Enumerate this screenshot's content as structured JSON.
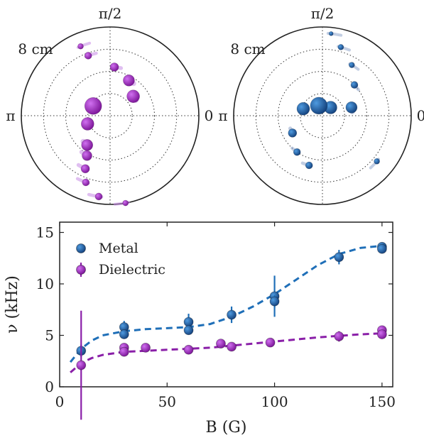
{
  "polar_plots": [
    {
      "top_label": "π/2",
      "left_label": "π",
      "right_label": "0",
      "radius_label": "8 cm",
      "series_color": "#8a1fa8",
      "points": [
        {
          "r": 0.85,
          "deg": 113,
          "size": 4
        },
        {
          "r": 0.72,
          "deg": 110,
          "size": 5
        },
        {
          "r": 0.55,
          "deg": 85,
          "size": 6
        },
        {
          "r": 0.45,
          "deg": 62,
          "size": 8
        },
        {
          "r": 0.34,
          "deg": 40,
          "size": 9
        },
        {
          "r": 0.22,
          "deg": 150,
          "size": 12
        },
        {
          "r": 0.27,
          "deg": 200,
          "size": 9
        },
        {
          "r": 0.42,
          "deg": 232,
          "size": 8
        },
        {
          "r": 0.52,
          "deg": 240,
          "size": 7
        },
        {
          "r": 0.66,
          "deg": 245,
          "size": 6
        },
        {
          "r": 0.8,
          "deg": 250,
          "size": 5
        },
        {
          "r": 0.92,
          "deg": 262,
          "size": 5
        },
        {
          "r": 1.0,
          "deg": 280,
          "size": 4
        }
      ]
    },
    {
      "top_label": "π/2",
      "left_label": "π",
      "right_label": "0",
      "radius_label": "8 cm",
      "series_color": "#2b5fa5",
      "points": [
        {
          "r": 0.93,
          "deg": 84,
          "size": 3
        },
        {
          "r": 0.8,
          "deg": 75,
          "size": 4
        },
        {
          "r": 0.66,
          "deg": 60,
          "size": 4
        },
        {
          "r": 0.5,
          "deg": 44,
          "size": 5
        },
        {
          "r": 0.34,
          "deg": 16,
          "size": 8
        },
        {
          "r": 0.13,
          "deg": 45,
          "size": 9
        },
        {
          "r": 0.12,
          "deg": 110,
          "size": 12
        },
        {
          "r": 0.23,
          "deg": 160,
          "size": 9
        },
        {
          "r": 0.39,
          "deg": 210,
          "size": 6
        },
        {
          "r": 0.5,
          "deg": 235,
          "size": 5
        },
        {
          "r": 0.58,
          "deg": 255,
          "size": 5
        },
        {
          "r": 0.8,
          "deg": 320,
          "size": 4
        }
      ]
    }
  ],
  "chart_data": {
    "type": "scatter",
    "xlabel": "B (G)",
    "ylabel": "ν (kHz)",
    "xlim": [
      0,
      155
    ],
    "ylim": [
      0,
      16
    ],
    "x_ticks": [
      0,
      50,
      100,
      150
    ],
    "y_ticks": [
      0,
      5,
      10,
      15
    ],
    "legend_position": "top-left",
    "series": [
      {
        "name": "Metal",
        "color": "#1f6fb8",
        "points": [
          {
            "x": 10,
            "y": 3.5,
            "err": 0.6
          },
          {
            "x": 30,
            "y": 5.8,
            "err": 0.6
          },
          {
            "x": 30,
            "y": 5.1,
            "err": 0.4
          },
          {
            "x": 60,
            "y": 6.3,
            "err": 0.8
          },
          {
            "x": 60,
            "y": 5.5,
            "err": 0.4
          },
          {
            "x": 80,
            "y": 7.0,
            "err": 0.8
          },
          {
            "x": 100,
            "y": 8.8,
            "err": 2.0
          },
          {
            "x": 100,
            "y": 8.3,
            "err": 0.6
          },
          {
            "x": 130,
            "y": 12.6,
            "err": 0.7
          },
          {
            "x": 150,
            "y": 13.6,
            "err": 0.4
          },
          {
            "x": 150,
            "y": 13.4,
            "err": 0.3
          }
        ],
        "fit": [
          [
            5,
            2.4
          ],
          [
            10,
            3.7
          ],
          [
            15,
            4.5
          ],
          [
            20,
            5.0
          ],
          [
            30,
            5.4
          ],
          [
            40,
            5.6
          ],
          [
            50,
            5.7
          ],
          [
            60,
            5.8
          ],
          [
            70,
            6.1
          ],
          [
            80,
            6.8
          ],
          [
            90,
            7.8
          ],
          [
            100,
            9.0
          ],
          [
            110,
            10.4
          ],
          [
            120,
            11.8
          ],
          [
            130,
            12.9
          ],
          [
            140,
            13.5
          ],
          [
            150,
            13.7
          ]
        ]
      },
      {
        "name": "Dielectric",
        "color": "#8a1fa8",
        "points": [
          {
            "x": 10,
            "y": 2.1,
            "err": 5.3
          },
          {
            "x": 30,
            "y": 3.8,
            "err": 0.4
          },
          {
            "x": 30,
            "y": 3.4,
            "err": 0.3
          },
          {
            "x": 40,
            "y": 3.8,
            "err": 0.3
          },
          {
            "x": 60,
            "y": 3.6,
            "err": 0.3
          },
          {
            "x": 75,
            "y": 4.2,
            "err": 0.3
          },
          {
            "x": 80,
            "y": 3.9,
            "err": 0.3
          },
          {
            "x": 98,
            "y": 4.3,
            "err": 0.3
          },
          {
            "x": 130,
            "y": 4.9,
            "err": 0.5
          },
          {
            "x": 150,
            "y": 5.5,
            "err": 0.3
          },
          {
            "x": 150,
            "y": 5.1,
            "err": 0.3
          }
        ],
        "fit": [
          [
            5,
            1.4
          ],
          [
            10,
            2.3
          ],
          [
            15,
            2.8
          ],
          [
            20,
            3.1
          ],
          [
            30,
            3.4
          ],
          [
            40,
            3.5
          ],
          [
            50,
            3.6
          ],
          [
            60,
            3.7
          ],
          [
            70,
            3.8
          ],
          [
            80,
            4.0
          ],
          [
            90,
            4.2
          ],
          [
            100,
            4.4
          ],
          [
            110,
            4.6
          ],
          [
            120,
            4.8
          ],
          [
            130,
            4.95
          ],
          [
            140,
            5.1
          ],
          [
            150,
            5.2
          ]
        ]
      }
    ]
  }
}
